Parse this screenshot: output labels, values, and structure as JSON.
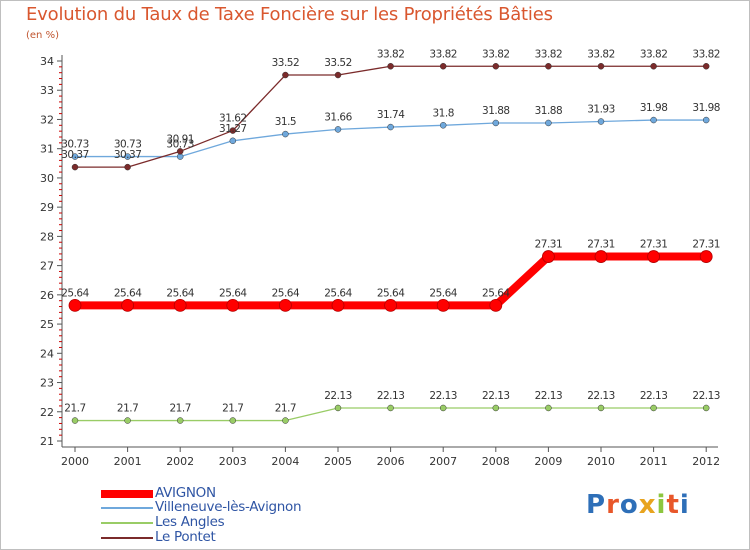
{
  "title": "Evolution du Taux de Taxe Foncière sur les Propriétés Bâties",
  "unit_label": "(en %)",
  "logo_text": "Proxiti",
  "colors": {
    "title": "#d9572f",
    "axis": "#555555",
    "tick_red": "#cc0000",
    "legend_text": "#2f55a4"
  },
  "chart_data": {
    "type": "line",
    "title": "Evolution du Taux de Taxe Foncière sur les Propriétés Bâties",
    "ylabel": "(en %)",
    "xlabel": "",
    "x": [
      "2000",
      "2001",
      "2002",
      "2003",
      "2004",
      "2005",
      "2006",
      "2007",
      "2008",
      "2009",
      "2010",
      "2011",
      "2012"
    ],
    "ylim": [
      21,
      34
    ],
    "yticks": [
      21,
      22,
      23,
      24,
      25,
      26,
      27,
      28,
      29,
      30,
      31,
      32,
      33,
      34
    ],
    "grid": false,
    "legend_position": "bottom-left",
    "series": [
      {
        "name": "AVIGNON",
        "color": "#ff0000",
        "values": [
          25.64,
          25.64,
          25.64,
          25.64,
          25.64,
          25.64,
          25.64,
          25.64,
          25.64,
          27.31,
          27.31,
          27.31,
          27.31
        ],
        "labels": [
          "25.64",
          "25.64",
          "25.64",
          "25.64",
          "25.64",
          "25.64",
          "25.64",
          "25.64",
          "25.64",
          "27.31",
          "27.31",
          "27.31",
          "27.31"
        ]
      },
      {
        "name": "Villeneuve-lès-Avignon",
        "color": "#6fa8dc",
        "values": [
          30.73,
          30.73,
          30.73,
          31.27,
          31.5,
          31.66,
          31.74,
          31.8,
          31.88,
          31.88,
          31.93,
          31.98,
          31.98
        ],
        "labels": [
          "30.73",
          "30.73",
          "30.73",
          "31.27",
          "31.5",
          "31.66",
          "31.74",
          "31.8",
          "31.88",
          "31.88",
          "31.93",
          "31.98",
          "31.98"
        ]
      },
      {
        "name": "Les Angles",
        "color": "#99cc66",
        "values": [
          21.7,
          21.7,
          21.7,
          21.7,
          21.7,
          22.13,
          22.13,
          22.13,
          22.13,
          22.13,
          22.13,
          22.13,
          22.13
        ],
        "labels": [
          "21.7",
          "21.7",
          "21.7",
          "21.7",
          "21.7",
          "22.13",
          "22.13",
          "22.13",
          "22.13",
          "22.13",
          "22.13",
          "22.13",
          "22.13"
        ]
      },
      {
        "name": "Le Pontet",
        "color": "#7b2b2b",
        "values": [
          30.37,
          30.37,
          30.91,
          31.62,
          33.52,
          33.52,
          33.82,
          33.82,
          33.82,
          33.82,
          33.82,
          33.82,
          33.82
        ],
        "labels": [
          "30.37",
          "30.37",
          "30.91",
          "31.62",
          "33.52",
          "33.52",
          "33.82",
          "33.82",
          "33.82",
          "33.82",
          "33.82",
          "33.82",
          "33.82"
        ]
      }
    ]
  }
}
